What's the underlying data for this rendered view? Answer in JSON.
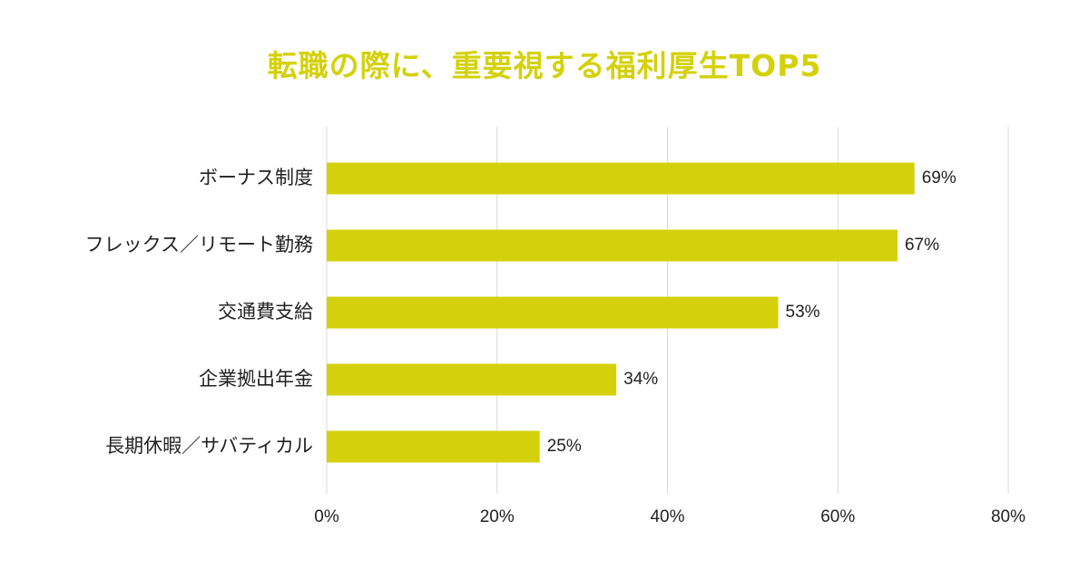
{
  "chart_data": {
    "type": "bar",
    "orientation": "horizontal",
    "title": "転職の際に、重要視する福利厚生TOP5",
    "categories": [
      "ボーナス制度",
      "フレックス／リモート勤務",
      "交通費支給",
      "企業拠出年金",
      "長期休暇／サバティカル"
    ],
    "values": [
      69,
      67,
      53,
      34,
      25
    ],
    "value_labels": [
      "69%",
      "67%",
      "53%",
      "34%",
      "25%"
    ],
    "xlim": [
      0,
      80
    ],
    "x_ticks": [
      0,
      20,
      40,
      60,
      80
    ],
    "x_tick_labels": [
      "0%",
      "20%",
      "40%",
      "60%",
      "80%"
    ],
    "grid": true,
    "legend": "none"
  },
  "colors": {
    "bar": "#d4d10c",
    "title": "#d4d10c",
    "grid": "#d9d9d9",
    "text": "#222222"
  }
}
